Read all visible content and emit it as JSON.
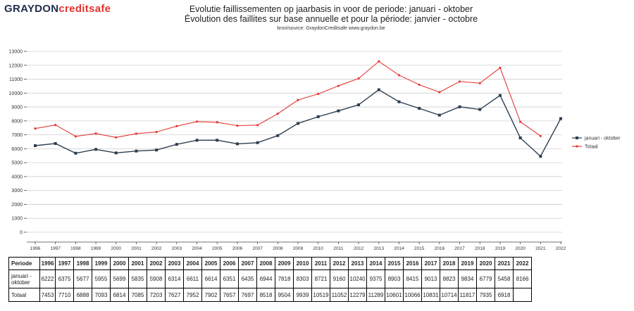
{
  "logo": {
    "graydon": "GRAYDON",
    "creditsafe": "creditsafe"
  },
  "chart_data": {
    "type": "line",
    "title": "Evolutie faillissementen op jaarbasis in voor de periode: januari - oktober",
    "subtitle": "Évolution des faillites sur base annuelle et pour la période: janvier - octobre",
    "source": "bron/source: GraydonCreditsafe www.graydon.be",
    "x": [
      "1996",
      "1997",
      "1998",
      "1999",
      "2000",
      "2001",
      "2002",
      "2003",
      "2004",
      "2005",
      "2006",
      "2007",
      "2008",
      "2009",
      "2010",
      "2011",
      "2012",
      "2013",
      "2014",
      "2015",
      "2016",
      "2017",
      "2018",
      "2019",
      "2020",
      "2021",
      "2022"
    ],
    "ylim": [
      0,
      13000
    ],
    "yticks": [
      0,
      1000,
      2000,
      3000,
      4000,
      5000,
      6000,
      7000,
      8000,
      9000,
      10000,
      11000,
      12000,
      13000
    ],
    "ytick_labels": [
      "0",
      "1000",
      "2000",
      "3000",
      "4000",
      "5000",
      "6000",
      "7000",
      "8000",
      "9000",
      "10000",
      "11000",
      "12000",
      "13000"
    ],
    "grid": true,
    "legend_position": "right",
    "series": [
      {
        "name": "januari - oktober",
        "color": "#2c3e50",
        "marker": "square",
        "values": [
          6222,
          6375,
          5677,
          5955,
          5699,
          5835,
          5908,
          6314,
          6611,
          6614,
          6351,
          6435,
          6944,
          7818,
          8303,
          8721,
          9160,
          10240,
          9375,
          8903,
          8415,
          9013,
          8823,
          9834,
          6779,
          5458,
          8166
        ]
      },
      {
        "name": "Totaal",
        "color": "#e53935",
        "marker": "dot",
        "values": [
          7453,
          7710,
          6888,
          7093,
          6814,
          7085,
          7203,
          7627,
          7952,
          7902,
          7657,
          7697,
          8518,
          9504,
          9939,
          10519,
          11052,
          12279,
          11289,
          10601,
          10066,
          10831,
          10714,
          11817,
          7935,
          6918,
          null
        ]
      }
    ]
  },
  "table": {
    "header_label": "Periode",
    "row1_label": "januari - oktober",
    "row2_label": "Totaal",
    "years": [
      "1996",
      "1997",
      "1998",
      "1999",
      "2000",
      "2001",
      "2002",
      "2003",
      "2004",
      "2005",
      "2006",
      "2007",
      "2008",
      "2009",
      "2010",
      "2011",
      "2012",
      "2013",
      "2014",
      "2015",
      "2016",
      "2017",
      "2018",
      "2019",
      "2020",
      "2021",
      "2022"
    ],
    "row1": [
      "6222",
      "6375",
      "5677",
      "5955",
      "5699",
      "5835",
      "5908",
      "6314",
      "6611",
      "6614",
      "6351",
      "6435",
      "6944",
      "7818",
      "8303",
      "8721",
      "9160",
      "10240",
      "9375",
      "8903",
      "8415",
      "9013",
      "8823",
      "9834",
      "6779",
      "5458",
      "8166"
    ],
    "row2": [
      "7453",
      "7710",
      "6888",
      "7093",
      "6814",
      "7085",
      "7203",
      "7627",
      "7952",
      "7902",
      "7657",
      "7697",
      "8518",
      "9504",
      "9939",
      "10519",
      "11052",
      "12279",
      "11289",
      "10601",
      "10066",
      "10831",
      "10714",
      "11817",
      "7935",
      "6918",
      ""
    ]
  }
}
